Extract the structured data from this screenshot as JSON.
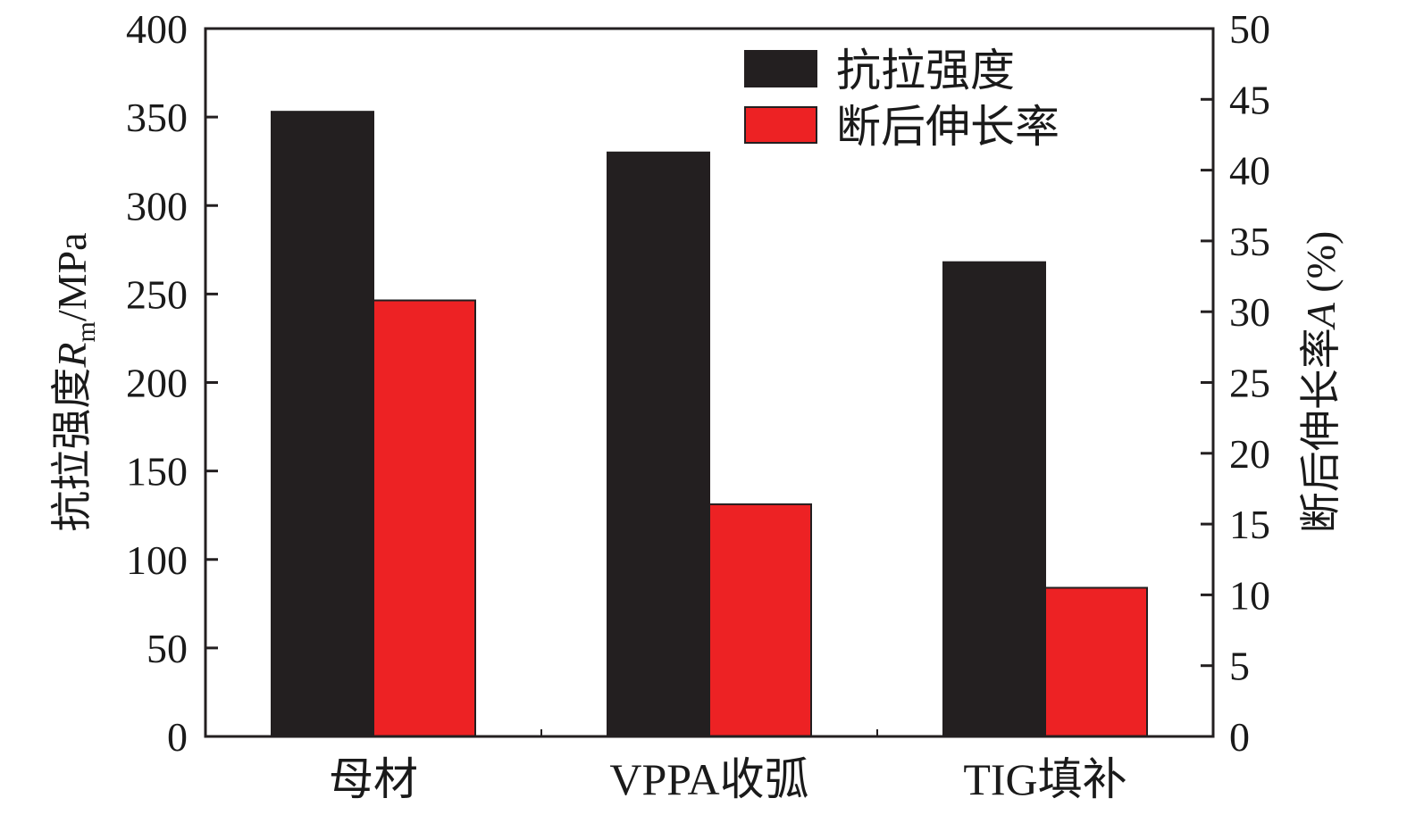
{
  "chart_data": {
    "type": "bar",
    "categories": [
      "母材",
      "VPPA收弧",
      "TIG填补"
    ],
    "series": [
      {
        "name": "抗拉强度",
        "axis": "left",
        "color": "#231f20",
        "values": [
          353,
          330,
          268
        ]
      },
      {
        "name": "断后伸长率",
        "axis": "right",
        "color": "#ed2224",
        "values": [
          30.8,
          16.4,
          10.5
        ]
      }
    ],
    "y_left": {
      "label_prefix": "抗拉强度",
      "label_symbol": "R",
      "label_subscript": "m",
      "label_suffix": "/MPa",
      "lim": [
        0,
        400
      ],
      "ticks": [
        "0",
        "50",
        "100",
        "150",
        "200",
        "250",
        "300",
        "350",
        "400"
      ]
    },
    "y_right": {
      "label_prefix": "断后伸长率",
      "label_symbol": "A",
      "label_suffix": " (%)",
      "lim": [
        0,
        50
      ],
      "ticks": [
        "0",
        "5",
        "10",
        "15",
        "20",
        "25",
        "30",
        "35",
        "40",
        "45",
        "50"
      ]
    },
    "legend_position": "top-right",
    "grid": false
  }
}
